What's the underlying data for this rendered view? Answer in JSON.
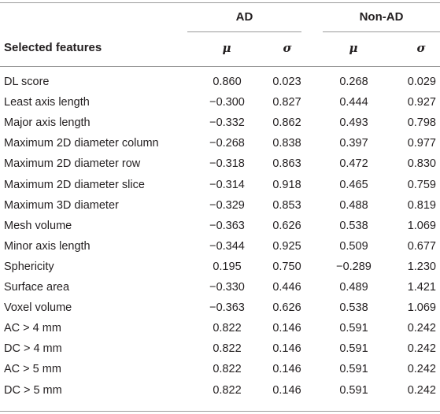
{
  "table": {
    "group_headers": {
      "ad": "AD",
      "non_ad": "Non-AD"
    },
    "column_headers": {
      "feature": "Selected features",
      "ad_mu": "μ",
      "ad_sigma": "σ",
      "non_ad_mu": "μ",
      "non_ad_sigma": "σ"
    },
    "rows": [
      {
        "feature": "DL score",
        "ad_mu": "0.860",
        "ad_sigma": "0.023",
        "non_ad_mu": "0.268",
        "non_ad_sigma": "0.029"
      },
      {
        "feature": "Least axis length",
        "ad_mu": "−0.300",
        "ad_sigma": "0.827",
        "non_ad_mu": "0.444",
        "non_ad_sigma": "0.927"
      },
      {
        "feature": "Major axis length",
        "ad_mu": "−0.332",
        "ad_sigma": "0.862",
        "non_ad_mu": "0.493",
        "non_ad_sigma": "0.798"
      },
      {
        "feature": "Maximum 2D diameter column",
        "ad_mu": "−0.268",
        "ad_sigma": "0.838",
        "non_ad_mu": "0.397",
        "non_ad_sigma": "0.977"
      },
      {
        "feature": "Maximum 2D diameter row",
        "ad_mu": "−0.318",
        "ad_sigma": "0.863",
        "non_ad_mu": "0.472",
        "non_ad_sigma": "0.830"
      },
      {
        "feature": "Maximum 2D diameter slice",
        "ad_mu": "−0.314",
        "ad_sigma": "0.918",
        "non_ad_mu": "0.465",
        "non_ad_sigma": "0.759"
      },
      {
        "feature": "Maximum 3D diameter",
        "ad_mu": "−0.329",
        "ad_sigma": "0.853",
        "non_ad_mu": "0.488",
        "non_ad_sigma": "0.819"
      },
      {
        "feature": "Mesh volume",
        "ad_mu": "−0.363",
        "ad_sigma": "0.626",
        "non_ad_mu": "0.538",
        "non_ad_sigma": "1.069"
      },
      {
        "feature": "Minor axis length",
        "ad_mu": "−0.344",
        "ad_sigma": "0.925",
        "non_ad_mu": "0.509",
        "non_ad_sigma": "0.677"
      },
      {
        "feature": "Sphericity",
        "ad_mu": "0.195",
        "ad_sigma": "0.750",
        "non_ad_mu": "−0.289",
        "non_ad_sigma": "1.230"
      },
      {
        "feature": "Surface area",
        "ad_mu": "−0.330",
        "ad_sigma": "0.446",
        "non_ad_mu": "0.489",
        "non_ad_sigma": "1.421"
      },
      {
        "feature": "Voxel volume",
        "ad_mu": "−0.363",
        "ad_sigma": "0.626",
        "non_ad_mu": "0.538",
        "non_ad_sigma": "1.069"
      },
      {
        "feature": "AC > 4 mm",
        "ad_mu": "0.822",
        "ad_sigma": "0.146",
        "non_ad_mu": "0.591",
        "non_ad_sigma": "0.242"
      },
      {
        "feature": "DC > 4 mm",
        "ad_mu": "0.822",
        "ad_sigma": "0.146",
        "non_ad_mu": "0.591",
        "non_ad_sigma": "0.242"
      },
      {
        "feature": "AC > 5 mm",
        "ad_mu": "0.822",
        "ad_sigma": "0.146",
        "non_ad_mu": "0.591",
        "non_ad_sigma": "0.242"
      },
      {
        "feature": "DC > 5 mm",
        "ad_mu": "0.822",
        "ad_sigma": "0.146",
        "non_ad_mu": "0.591",
        "non_ad_sigma": "0.242"
      }
    ]
  }
}
